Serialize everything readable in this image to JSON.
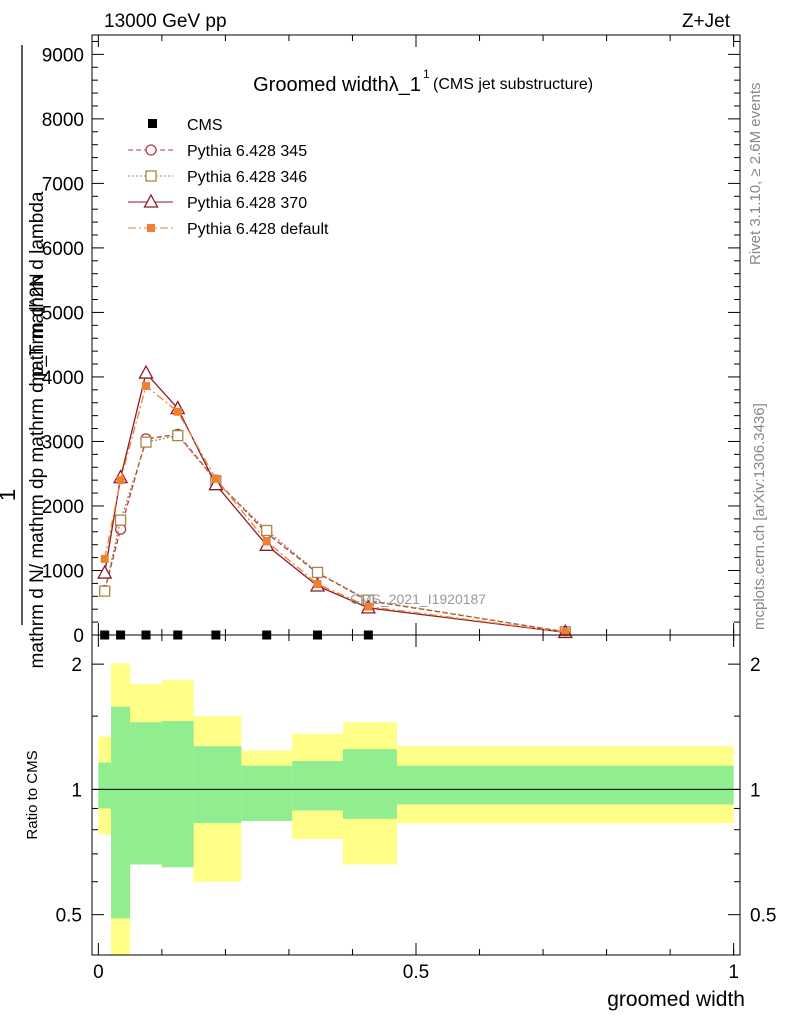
{
  "header": {
    "left_label": "13000 GeV pp",
    "right_label": "Z+Jet"
  },
  "side_text": {
    "rivet": "Rivet 3.1.10, ≥ 2.6M events",
    "mcplots": "mcplots.cern.ch [arXiv:1306.3436]"
  },
  "chart_data": [
    {
      "type": "line",
      "title_main": "Groomed widthλ_1",
      "title_sup": "1",
      "title_sub": "(CMS jet substructure)",
      "ylabel_numerator": "1",
      "ylabel_text": "mathrm d N/ mathrm d p_T mathrm d λ — mathrm d^2N / mathrm dλ mathrm d p_T",
      "ylabel_line1": "mathrm d^2N",
      "ylabel_line2": "mathrm d N/ mathrm dp mathrm d p_T mathrm d lambda",
      "ylim": [
        0,
        9300
      ],
      "yticks": [
        0,
        1000,
        2000,
        3000,
        4000,
        5000,
        6000,
        7000,
        8000,
        9000
      ],
      "ytick_labels": [
        "0",
        "1000",
        "2000",
        "3000",
        "4000",
        "5000",
        "6000",
        "7000",
        "8000",
        "9000"
      ],
      "xlim": [
        -0.01,
        1.01
      ],
      "watermark": "CMS_2021_I1920187",
      "cms": {
        "name": "CMS",
        "x": [
          0.01,
          0.035,
          0.075,
          0.125,
          0.185,
          0.265,
          0.345,
          0.425
        ],
        "y": [
          0,
          0,
          0,
          0,
          0,
          0,
          0,
          0
        ]
      },
      "series": [
        {
          "name": "Pythia 6.428 345",
          "color": "#b03a48",
          "marker": "circle",
          "dash": "5,3",
          "x": [
            0.01,
            0.035,
            0.075,
            0.125,
            0.185,
            0.265,
            0.345,
            0.425,
            0.735
          ],
          "y": [
            690,
            1640,
            3040,
            3110,
            2400,
            1580,
            960,
            530,
            50
          ]
        },
        {
          "name": "Pythia 6.428 346",
          "color": "#a8864a",
          "marker": "square",
          "dash": "2,2",
          "x": [
            0.01,
            0.035,
            0.075,
            0.125,
            0.185,
            0.265,
            0.345,
            0.425,
            0.735
          ],
          "y": [
            680,
            1780,
            2990,
            3090,
            2390,
            1620,
            970,
            540,
            50
          ]
        },
        {
          "name": "Pythia 6.428 370",
          "color": "#8b1a2b",
          "marker": "triangle",
          "dash": "",
          "x": [
            0.01,
            0.035,
            0.075,
            0.125,
            0.185,
            0.265,
            0.345,
            0.425,
            0.735
          ],
          "y": [
            960,
            2440,
            4060,
            3510,
            2330,
            1390,
            760,
            420,
            40
          ]
        },
        {
          "name": "Pythia 6.428 default",
          "color": "#f08030",
          "marker": "filled-square",
          "dash": "8,3,2,3",
          "x": [
            0.01,
            0.035,
            0.075,
            0.125,
            0.185,
            0.265,
            0.345,
            0.425,
            0.735
          ],
          "y": [
            1180,
            2400,
            3860,
            3460,
            2420,
            1450,
            790,
            440,
            45
          ]
        }
      ]
    },
    {
      "type": "area",
      "ylabel": "Ratio to CMS",
      "xlabel": "groomed width",
      "ylim": [
        0.4,
        2.35
      ],
      "yscale": "log",
      "yticks": [
        0.5,
        1,
        2
      ],
      "ytick_labels": [
        "0.5",
        "1",
        "2"
      ],
      "xlim": [
        -0.01,
        1.01
      ],
      "xticks": [
        0,
        0.5,
        1
      ],
      "xtick_labels": [
        "0",
        "0.5",
        "1"
      ],
      "bands": {
        "edges": [
          0.0,
          0.02,
          0.05,
          0.1,
          0.15,
          0.225,
          0.305,
          0.385,
          0.47,
          1.0
        ],
        "yellow_low": [
          0.78,
          0.0,
          0.66,
          0.65,
          0.6,
          0.84,
          0.76,
          0.66,
          0.83
        ],
        "yellow_high": [
          1.34,
          2.01,
          1.79,
          1.83,
          1.5,
          1.24,
          1.36,
          1.45,
          1.27
        ],
        "green_low": [
          0.9,
          0.49,
          0.66,
          0.65,
          0.83,
          0.84,
          0.89,
          0.85,
          0.92
        ],
        "green_high": [
          1.16,
          1.58,
          1.45,
          1.46,
          1.27,
          1.14,
          1.17,
          1.25,
          1.14
        ]
      }
    }
  ]
}
